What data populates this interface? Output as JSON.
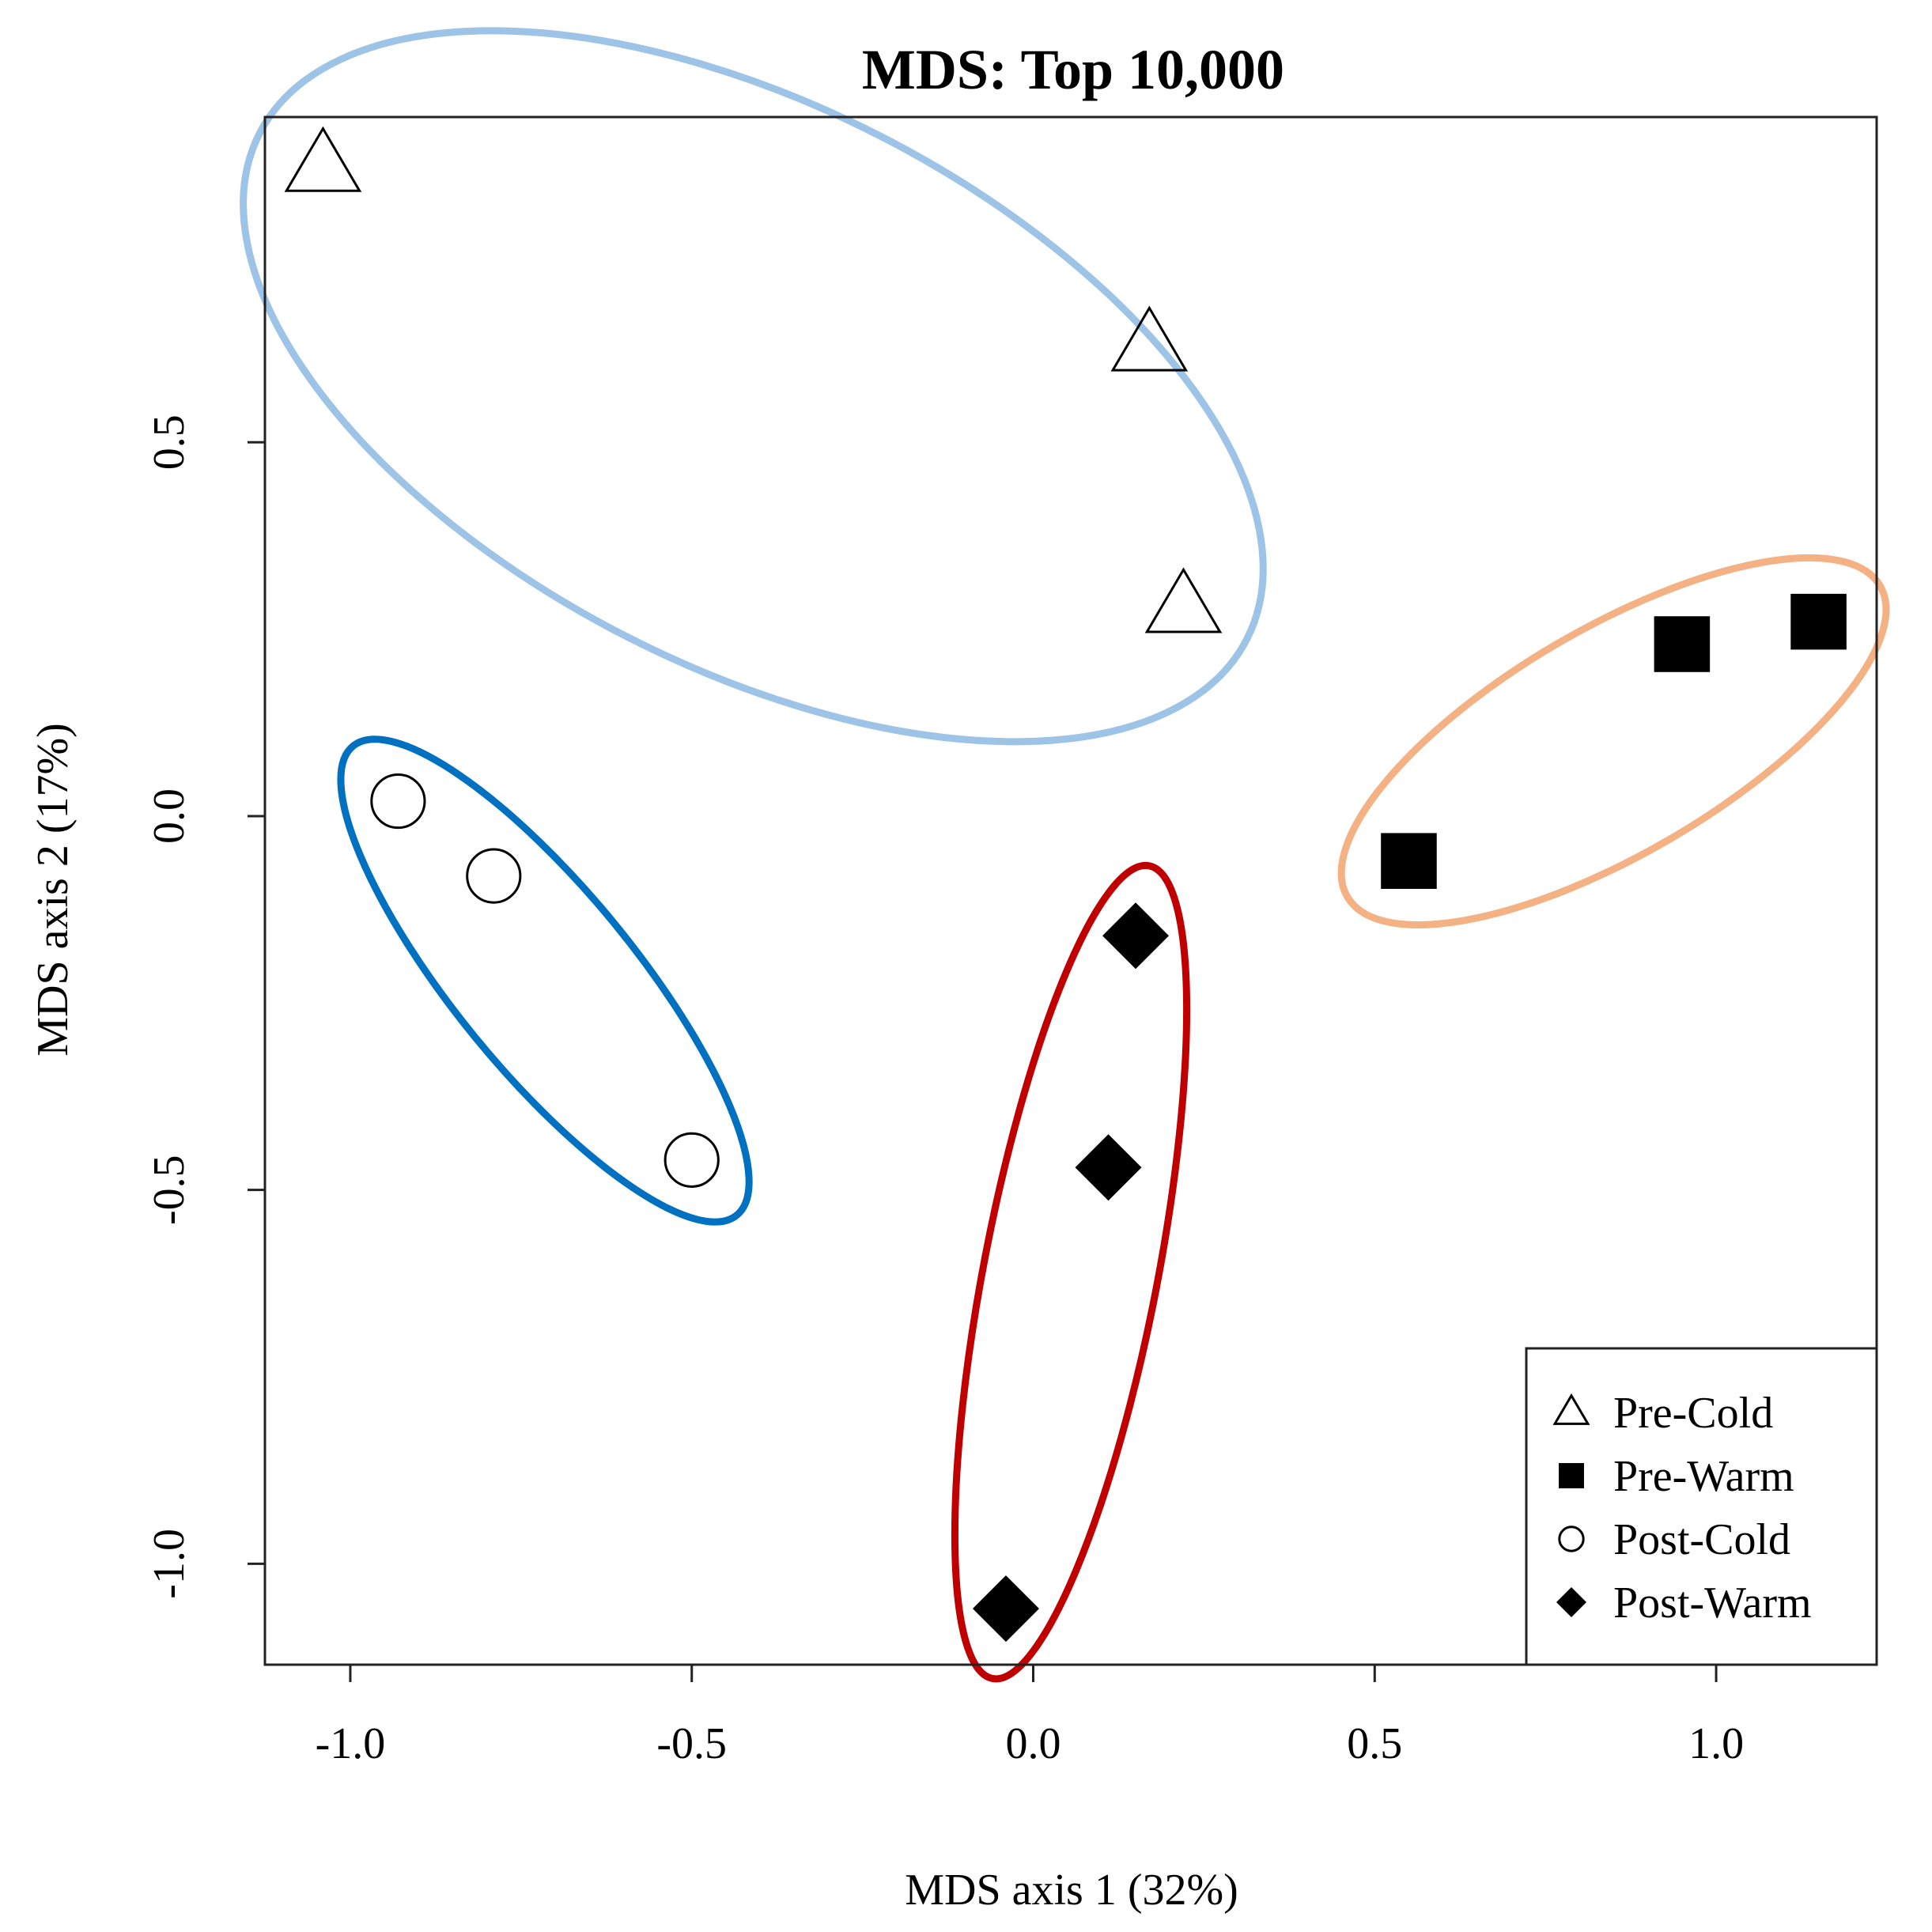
{
  "chart_data": {
    "type": "scatter",
    "title": "MDS: Top 10,000",
    "xlabel": "MDS axis 1 (32%)",
    "ylabel": "MDS axis 2 (17%)",
    "xlim": [
      -1.125,
      1.235
    ],
    "ylim": [
      -1.135,
      0.935
    ],
    "x_ticks": [
      -1.0,
      -0.5,
      0.0,
      0.5,
      1.0
    ],
    "x_tick_labels": [
      "-1.0",
      "-0.5",
      "0.0",
      "0.5",
      "1.0"
    ],
    "y_ticks": [
      -1.0,
      -0.5,
      0.0,
      0.5
    ],
    "y_tick_labels": [
      "-1.0",
      "-0.5",
      "0.0",
      "0.5"
    ],
    "grid": false,
    "legend_position": "bottom-right",
    "series": [
      {
        "name": "Pre-Cold",
        "marker": "open-triangle",
        "ellipse_color": "#9dc3e6",
        "points": [
          {
            "x": -1.04,
            "y": 0.87
          },
          {
            "x": 0.17,
            "y": 0.63
          },
          {
            "x": 0.22,
            "y": 0.28
          }
        ]
      },
      {
        "name": "Pre-Warm",
        "marker": "filled-square",
        "ellipse_color": "#f4b183",
        "points": [
          {
            "x": 0.55,
            "y": -0.06
          },
          {
            "x": 0.95,
            "y": 0.23
          },
          {
            "x": 1.15,
            "y": 0.26
          }
        ]
      },
      {
        "name": "Post-Cold",
        "marker": "open-circle",
        "ellipse_color": "#0070c0",
        "points": [
          {
            "x": -0.93,
            "y": 0.02
          },
          {
            "x": -0.79,
            "y": -0.08
          },
          {
            "x": -0.5,
            "y": -0.46
          }
        ]
      },
      {
        "name": "Post-Warm",
        "marker": "filled-diamond",
        "ellipse_color": "#c00000",
        "points": [
          {
            "x": 0.15,
            "y": -0.16
          },
          {
            "x": 0.11,
            "y": -0.47
          },
          {
            "x": -0.04,
            "y": -1.06
          }
        ]
      }
    ]
  }
}
